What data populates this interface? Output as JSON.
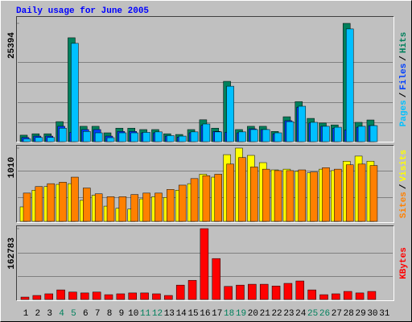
{
  "title": "Daily usage for June 2005",
  "categories": [
    "1",
    "2",
    "3",
    "4",
    "5",
    "6",
    "7",
    "8",
    "9",
    "10",
    "11",
    "12",
    "13",
    "14",
    "15",
    "16",
    "17",
    "18",
    "19",
    "20",
    "21",
    "22",
    "23",
    "24",
    "25",
    "26",
    "27",
    "28",
    "29",
    "30",
    "31"
  ],
  "category_label_colors": [
    "#000000",
    "#000000",
    "#000000",
    "#00805c",
    "#00805c",
    "#000000",
    "#000000",
    "#000000",
    "#000000",
    "#000000",
    "#00805c",
    "#00805c",
    "#000000",
    "#000000",
    "#000000",
    "#000000",
    "#000000",
    "#00805c",
    "#00805c",
    "#000000",
    "#000000",
    "#000000",
    "#000000",
    "#000000",
    "#00805c",
    "#00805c",
    "#000000",
    "#000000",
    "#000000",
    "#000000",
    "#000000"
  ],
  "chart_data": [
    {
      "type": "bar",
      "ylim": [
        0,
        25394
      ],
      "yticks": [
        25394
      ],
      "legend_separator": "/",
      "series": [
        {
          "name": "Hits",
          "color": "#00805c",
          "values": [
            1400,
            1700,
            1700,
            4300,
            22300,
            3300,
            3300,
            1900,
            2900,
            2900,
            2600,
            2600,
            1700,
            1550,
            2600,
            4700,
            2900,
            12950,
            2600,
            3300,
            3300,
            2200,
            5350,
            8600,
            5000,
            4000,
            3600,
            25394,
            4150,
            4660,
            null
          ]
        },
        {
          "name": "Files",
          "color": "#0040ff",
          "values": [
            900,
            1200,
            1200,
            3300,
            2000,
            2600,
            2600,
            1200,
            2200,
            2200,
            1900,
            1900,
            1200,
            1000,
            1900,
            3500,
            2200,
            2000,
            1900,
            2760,
            2600,
            1700,
            4500,
            7400,
            4000,
            3300,
            2900,
            2500,
            3100,
            3450,
            null
          ]
        },
        {
          "name": "Pages",
          "color": "#00c0ff",
          "values": [
            600,
            900,
            900,
            2900,
            21100,
            2200,
            1900,
            860,
            1900,
            1900,
            2000,
            2100,
            1300,
            1200,
            2100,
            3800,
            2100,
            11900,
            2100,
            2600,
            2600,
            1900,
            4300,
            7600,
            4150,
            3300,
            3100,
            24200,
            3300,
            3450,
            null
          ]
        }
      ]
    },
    {
      "type": "bar",
      "ylim": [
        0,
        1010
      ],
      "yticks": [
        1010
      ],
      "legend_separator": "/",
      "series": [
        {
          "name": "Visits",
          "color": "#ffff00",
          "values": [
            200,
            430,
            480,
            510,
            520,
            290,
            360,
            210,
            180,
            170,
            310,
            340,
            330,
            430,
            520,
            650,
            610,
            920,
            1010,
            910,
            810,
            710,
            720,
            690,
            670,
            720,
            700,
            830,
            900,
            830,
            null
          ]
        },
        {
          "name": "Sites",
          "color": "#ff8000",
          "values": [
            390,
            480,
            520,
            540,
            610,
            460,
            380,
            340,
            340,
            370,
            390,
            390,
            440,
            500,
            590,
            630,
            650,
            790,
            880,
            750,
            720,
            700,
            700,
            710,
            680,
            740,
            720,
            780,
            790,
            770,
            null
          ]
        }
      ]
    },
    {
      "type": "bar",
      "ylim": [
        0,
        162783
      ],
      "yticks": [
        162783
      ],
      "legend_separator": "/",
      "series": [
        {
          "name": "KBytes",
          "color": "#ff0000",
          "values": [
            5500,
            9200,
            13000,
            22000,
            17000,
            15000,
            17000,
            11000,
            13000,
            15000,
            15000,
            13000,
            9200,
            33000,
            44000,
            162783,
            94000,
            30000,
            33000,
            35000,
            35000,
            31000,
            37000,
            42500,
            22000,
            11000,
            13000,
            18500,
            15000,
            18500,
            null
          ]
        }
      ]
    }
  ]
}
